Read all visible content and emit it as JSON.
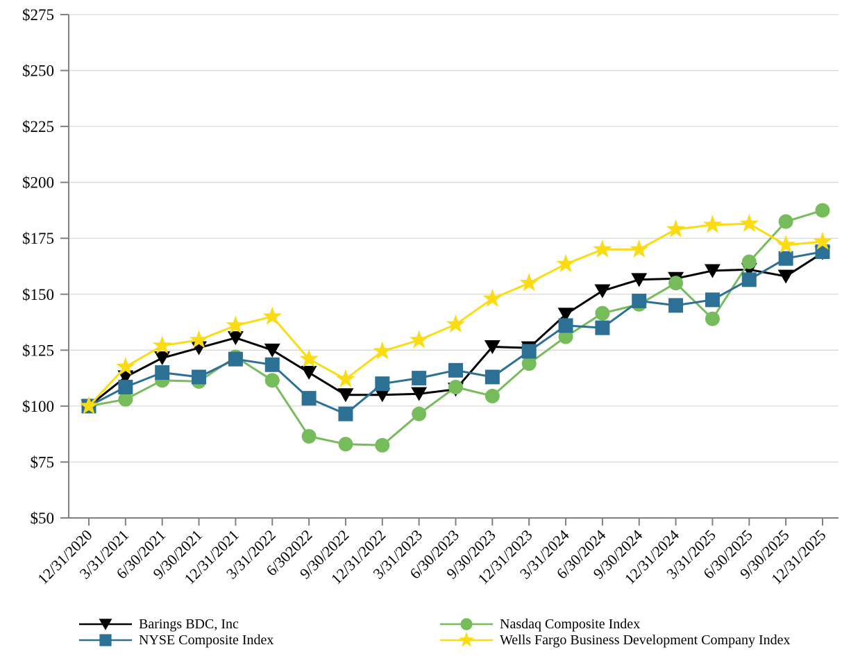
{
  "chart_data": {
    "type": "line",
    "title": "",
    "xlabel": "",
    "ylabel": "",
    "grid": "horizontal",
    "legend_position": "bottom",
    "ylim": [
      50,
      275
    ],
    "y_tick_values": [
      275,
      250,
      225,
      200,
      175,
      150,
      125,
      100,
      75,
      50
    ],
    "y_tick_labels": [
      "$275",
      "$250",
      "$225",
      "$200",
      "$175",
      "$150",
      "$125",
      "$100",
      "$75",
      "$50"
    ],
    "axis_color": "#808080",
    "gridline_color": "#d9d9d9",
    "categories": [
      "12/31/2020",
      "3/31/2021",
      "6/30/2021",
      "9/30/2021",
      "12/31/2021",
      "3/31/2022",
      "6/302022",
      "9/30/2022",
      "12/31/2022",
      "3/31/2023",
      "6/30/2023",
      "9/30/2023",
      "12/31/2023",
      "3/31/2024",
      "6/30/2024",
      "9/30/2024",
      "12/31/2024",
      "3/31/2025",
      "6/30/2025",
      "9/30/2025",
      "12/31/2025"
    ],
    "series": [
      {
        "name": "Barings BDC, Inc",
        "marker": "triangle-down",
        "color": "#000000",
        "values": [
          100,
          113,
          121.5,
          126,
          130.5,
          125,
          115,
          105,
          105,
          105.5,
          107.5,
          126.5,
          126,
          141,
          151.5,
          156.5,
          157,
          160.5,
          161,
          158,
          168.5
        ]
      },
      {
        "name": "NYSE Composite Index",
        "marker": "square",
        "color": "#2d7096",
        "values": [
          100,
          108.5,
          115,
          113,
          121,
          118.5,
          103.5,
          96.5,
          110,
          112.5,
          116,
          113,
          124.5,
          136,
          135,
          147,
          145,
          147.5,
          156.5,
          166,
          169
        ]
      },
      {
        "name": "Nasdaq Composite Index",
        "marker": "circle",
        "color": "#76bc5b",
        "values": [
          100,
          103,
          111.5,
          111,
          122,
          111.5,
          86.5,
          83,
          82.5,
          96.5,
          108.5,
          104.5,
          119,
          131,
          141.5,
          145.5,
          155,
          139,
          164.5,
          182.5,
          187.5
        ]
      },
      {
        "name": "Wells Fargo Business Development Company Index",
        "marker": "star",
        "color": "#fbdc12",
        "values": [
          100,
          117.5,
          127,
          129.5,
          136,
          140,
          121,
          112,
          124.5,
          129.5,
          136.5,
          148,
          155,
          163.5,
          170,
          170,
          179,
          181,
          181.5,
          172,
          173.5
        ]
      }
    ]
  },
  "legend": {
    "items": [
      {
        "label": "Barings BDC, Inc"
      },
      {
        "label": "NYSE Composite Index"
      },
      {
        "label": "Nasdaq Composite Index"
      },
      {
        "label": "Wells Fargo Business Development Company Index"
      }
    ]
  }
}
